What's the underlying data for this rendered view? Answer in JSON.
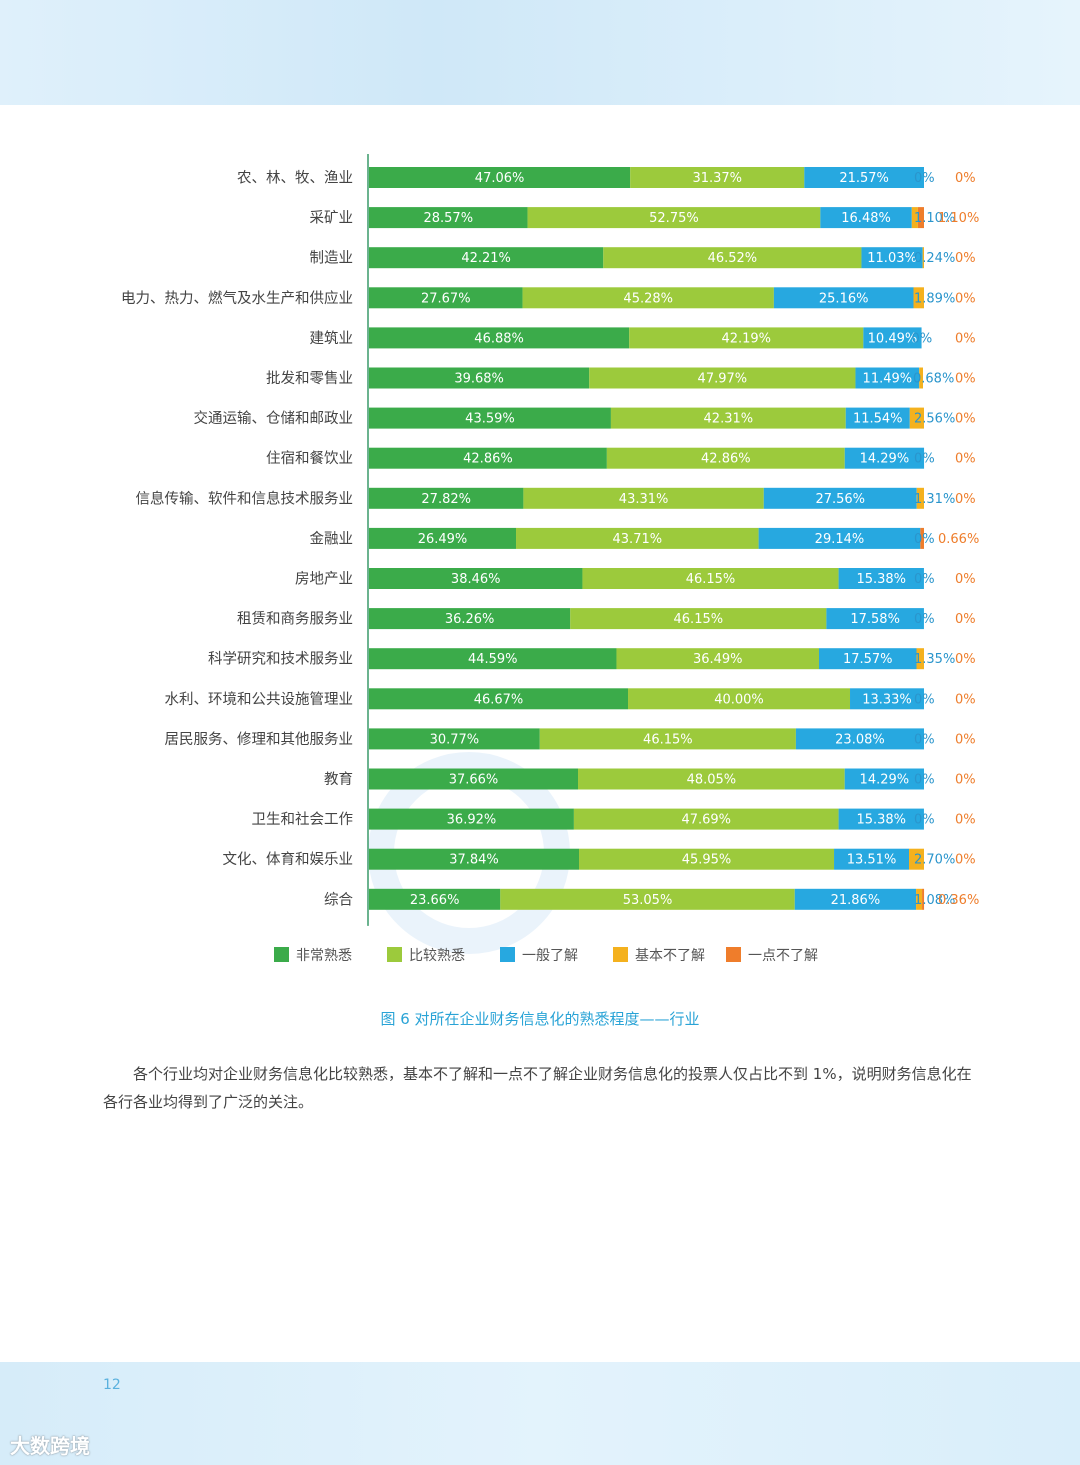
{
  "chart_data": {
    "type": "bar",
    "orientation": "horizontal",
    "stacked": true,
    "title": "图 6 对所在企业财务信息化的熟悉程度——行业",
    "xlabel": "",
    "ylabel": "",
    "categories": [
      "农、林、牧、渔业",
      "采矿业",
      "制造业",
      "电力、热力、燃气及水生产和供应业",
      "建筑业",
      "批发和零售业",
      "交通运输、仓储和邮政业",
      "住宿和餐饮业",
      "信息传输、软件和信息技术服务业",
      "金融业",
      "房地产业",
      "租赁和商务服务业",
      "科学研究和技术服务业",
      "水利、环境和公共设施管理业",
      "居民服务、修理和其他服务业",
      "教育",
      "卫生和社会工作",
      "文化、体育和娱乐业",
      "综合"
    ],
    "series": [
      {
        "name": "非常熟悉",
        "color": "#3bab4a",
        "values": [
          47.06,
          28.57,
          42.21,
          27.67,
          46.88,
          39.68,
          43.59,
          42.86,
          27.82,
          26.49,
          38.46,
          36.26,
          44.59,
          46.67,
          30.77,
          37.66,
          36.92,
          37.84,
          23.66
        ],
        "labels": [
          "47.06%",
          "28.57%",
          "42.21%",
          "27.67%",
          "46.88%",
          "39.68%",
          "43.59%",
          "42.86%",
          "27.82%",
          "26.49%",
          "38.46%",
          "36.26%",
          "44.59%",
          "46.67%",
          "30.77%",
          "37.66%",
          "36.92%",
          "37.84%",
          "23.66%"
        ]
      },
      {
        "name": "比较熟悉",
        "color": "#9cca3c",
        "values": [
          31.37,
          52.75,
          46.52,
          45.28,
          42.19,
          47.97,
          42.31,
          42.86,
          43.31,
          43.71,
          46.15,
          46.15,
          36.49,
          40.0,
          46.15,
          48.05,
          47.69,
          45.95,
          53.05
        ],
        "labels": [
          "31.37%",
          "52.75%",
          "46.52%",
          "45.28%",
          "42.19%",
          "47.97%",
          "42.31%",
          "42.86%",
          "43.31%",
          "43.71%",
          "46.15%",
          "46.15%",
          "36.49%",
          "40.00%",
          "46.15%",
          "48.05%",
          "47.69%",
          "45.95%",
          "53.05%"
        ]
      },
      {
        "name": "一般了解",
        "color": "#27a8e0",
        "values": [
          21.57,
          16.48,
          11.03,
          25.16,
          10.49,
          11.49,
          11.54,
          14.29,
          27.56,
          29.14,
          15.38,
          17.58,
          17.57,
          13.33,
          23.08,
          14.29,
          15.38,
          13.51,
          21.86
        ],
        "labels": [
          "21.57%",
          "16.48%",
          "11.03%",
          "25.16%",
          "10.49%",
          "11.49%",
          "11.54%",
          "14.29%",
          "27.56%",
          "29.14%",
          "15.38%",
          "17.58%",
          "17.57%",
          "13.33%",
          "23.08%",
          "14.29%",
          "15.38%",
          "13.51%",
          "21.86%"
        ]
      },
      {
        "name": "基本不了解",
        "color": "#f4b11e",
        "values": [
          0,
          1.1,
          0.24,
          1.89,
          0,
          0.68,
          2.56,
          0,
          1.31,
          0,
          0,
          0,
          1.35,
          0,
          0,
          0,
          0,
          2.7,
          1.08
        ],
        "labels": [
          "0%",
          "1.10%",
          "0.24%",
          "1.89%",
          "0%",
          "0.68%",
          "2.56%",
          "0%",
          "1.31%",
          "0%",
          "0%",
          "0%",
          "1.35%",
          "0%",
          "0%",
          "0%",
          "0%",
          "2.70%",
          "1.08%"
        ]
      },
      {
        "name": "一点不了解",
        "color": "#ef7d2b",
        "values": [
          0,
          1.1,
          0,
          0,
          0,
          0,
          0,
          0,
          0,
          0.66,
          0,
          0,
          0,
          0,
          0,
          0,
          0,
          0,
          0.36
        ],
        "labels": [
          "0%",
          "1.10%",
          "0%",
          "0%",
          "0%",
          "0%",
          "0%",
          "0%",
          "0%",
          "0.66%",
          "0%",
          "0%",
          "0%",
          "0%",
          "0%",
          "0%",
          "0%",
          "0%",
          "0.36%"
        ]
      }
    ],
    "xlim": [
      0,
      100
    ],
    "legend_position": "bottom",
    "grid": false
  },
  "caption": "各个行业均对企业财务信息化比较熟悉，基本不了解和一点不了解企业财务信息化的投票人仅占比不到 1%，说明财务信息化在各行各业均得到了广泛的关注。",
  "page_number": "12",
  "watermark_logo": "大数跨境"
}
